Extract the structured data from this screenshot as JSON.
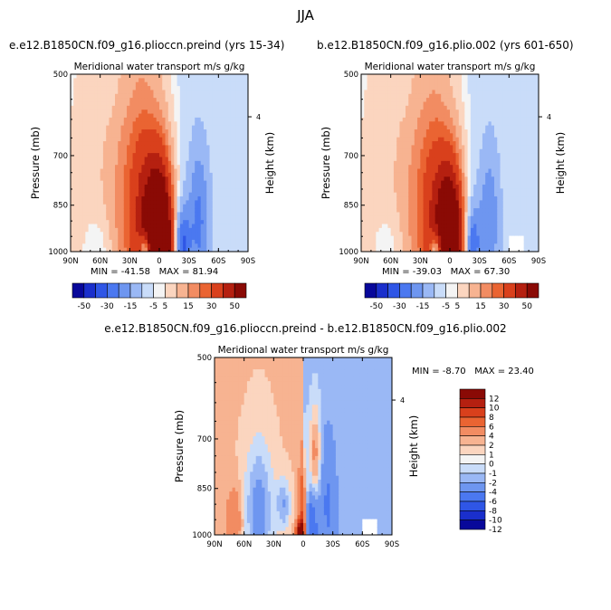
{
  "figure": {
    "title": "JJA",
    "colors": {
      "neg": [
        "#08089a",
        "#1a2fcc",
        "#2f56e6",
        "#4b78f0",
        "#6e96f0",
        "#9ab8f5",
        "#c9dcf9"
      ],
      "neutral": "#f4f4f4",
      "pos": [
        "#fbd5bf",
        "#f7b391",
        "#f28c62",
        "#ea6432",
        "#d9401c",
        "#b52010",
        "#8a0a05"
      ]
    }
  },
  "panels": [
    {
      "id": "left",
      "title": "e.e12.B1850CN.f09_g16.plioccn.preind (yrs 15-34)",
      "subtitle": "Meridional water transport m/s g/kg",
      "min_label": "MIN = -41.58",
      "max_label": "MAX = 81.94"
    },
    {
      "id": "right",
      "title": "b.e12.B1850CN.f09_g16.plio.002 (yrs 601-650)",
      "subtitle": "Meridional water transport m/s g/kg",
      "min_label": "MIN = -39.03",
      "max_label": "MAX = 67.30"
    },
    {
      "id": "diff",
      "title": "e.e12.B1850CN.f09_g16.plioccn.preind - b.e12.B1850CN.f09_g16.plio.002",
      "subtitle": "Meridional water transport m/s g/kg",
      "min_label": "MIN =   -8.70",
      "max_label": "MAX =  23.40"
    }
  ],
  "axes": {
    "ylabel": "Pressure (mb)",
    "right_label": "Height (km)",
    "height_tick": "4",
    "xticks": [
      "90N",
      "60N",
      "30N",
      "0",
      "30S",
      "60S",
      "90S"
    ],
    "yticks": [
      "500",
      "700",
      "850",
      "1000"
    ]
  },
  "colorbars": {
    "top_labels": [
      "-50",
      "-30",
      "-15",
      "-5",
      "5",
      "15",
      "30",
      "50"
    ],
    "diff_labels": [
      "12",
      "10",
      "8",
      "6",
      "4",
      "2",
      "1",
      "0",
      "-1",
      "-2",
      "-4",
      "-6",
      "-8",
      "-10",
      "-12"
    ]
  },
  "chart_data": [
    {
      "type": "heatmap",
      "title": "e.e12.B1850CN.f09_g16.plioccn.preind (yrs 15-34)",
      "subtitle": "Meridional water transport m/s g/kg",
      "ylabel": "Pressure (mb)",
      "x_range": [
        "90N",
        "90S"
      ],
      "y_range": [
        500,
        1000
      ],
      "min": -41.58,
      "max": 81.94,
      "levels": [
        -50,
        -40,
        -30,
        -20,
        -15,
        -10,
        -5,
        -1,
        1,
        5,
        10,
        15,
        20,
        30,
        40,
        50
      ]
    },
    {
      "type": "heatmap",
      "title": "b.e12.B1850CN.f09_g16.plio.002 (yrs 601-650)",
      "subtitle": "Meridional water transport m/s g/kg",
      "ylabel": "Pressure (mb)",
      "x_range": [
        "90N",
        "90S"
      ],
      "y_range": [
        500,
        1000
      ],
      "min": -39.03,
      "max": 67.3,
      "levels": [
        -50,
        -40,
        -30,
        -20,
        -15,
        -10,
        -5,
        -1,
        1,
        5,
        10,
        15,
        20,
        30,
        40,
        50
      ]
    },
    {
      "type": "heatmap",
      "title": "e.e12.B1850CN.f09_g16.plioccn.preind - b.e12.B1850CN.f09_g16.plio.002",
      "subtitle": "Meridional water transport m/s g/kg",
      "ylabel": "Pressure (mb)",
      "x_range": [
        "90N",
        "90S"
      ],
      "y_range": [
        500,
        1000
      ],
      "min": -8.7,
      "max": 23.4,
      "levels": [
        -12,
        -10,
        -8,
        -6,
        -4,
        -2,
        -1,
        0,
        1,
        2,
        4,
        6,
        8,
        10,
        12
      ]
    }
  ]
}
